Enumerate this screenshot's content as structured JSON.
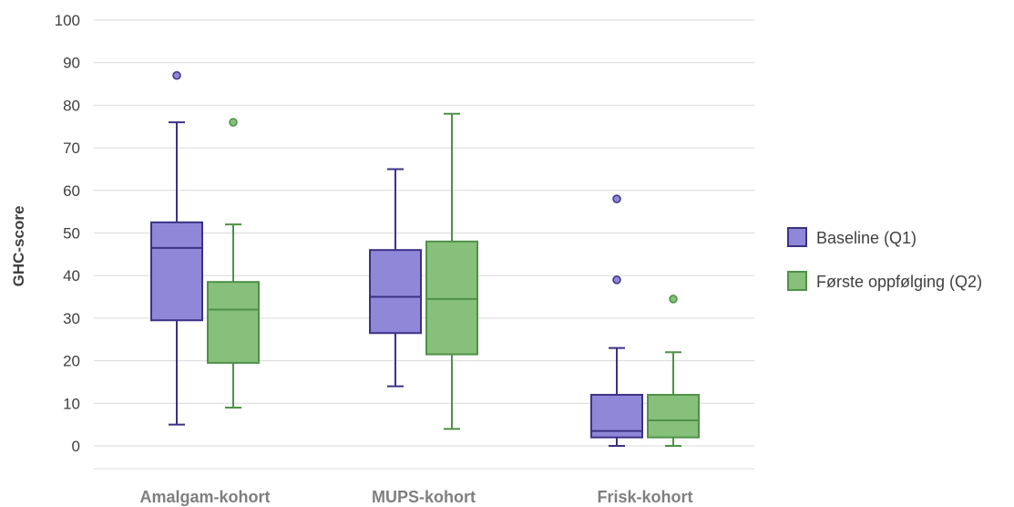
{
  "chart_data": {
    "type": "box",
    "ylabel": "GHC-score",
    "ylim": [
      0,
      100
    ],
    "ytick_step": 10,
    "grid": true,
    "legend_position": "right",
    "categories": [
      "Amalgam-kohort",
      "MUPS-kohort",
      "Frisk-kohort"
    ],
    "series": [
      {
        "name": "Baseline (Q1)",
        "fill": "#8f88d8",
        "stroke": "#3b3285",
        "boxes": [
          {
            "min": 5,
            "q1": 29.5,
            "median": 46.5,
            "q3": 52.5,
            "max": 76,
            "outliers": [
              87
            ]
          },
          {
            "min": 14,
            "q1": 26.5,
            "median": 35,
            "q3": 46,
            "max": 65,
            "outliers": []
          },
          {
            "min": 0,
            "q1": 2,
            "median": 3.5,
            "q3": 12,
            "max": 23,
            "outliers": [
              39,
              58
            ]
          }
        ]
      },
      {
        "name": "Første oppfølging (Q2)",
        "fill": "#86c07a",
        "stroke": "#4f9148",
        "boxes": [
          {
            "min": 9,
            "q1": 19.5,
            "median": 32,
            "q3": 38.5,
            "max": 52,
            "outliers": [
              76
            ]
          },
          {
            "min": 4,
            "q1": 21.5,
            "median": 34.5,
            "q3": 48,
            "max": 78,
            "outliers": []
          },
          {
            "min": 0,
            "q1": 2,
            "median": 6,
            "q3": 12,
            "max": 22,
            "outliers": [
              34.5
            ]
          }
        ]
      }
    ]
  }
}
